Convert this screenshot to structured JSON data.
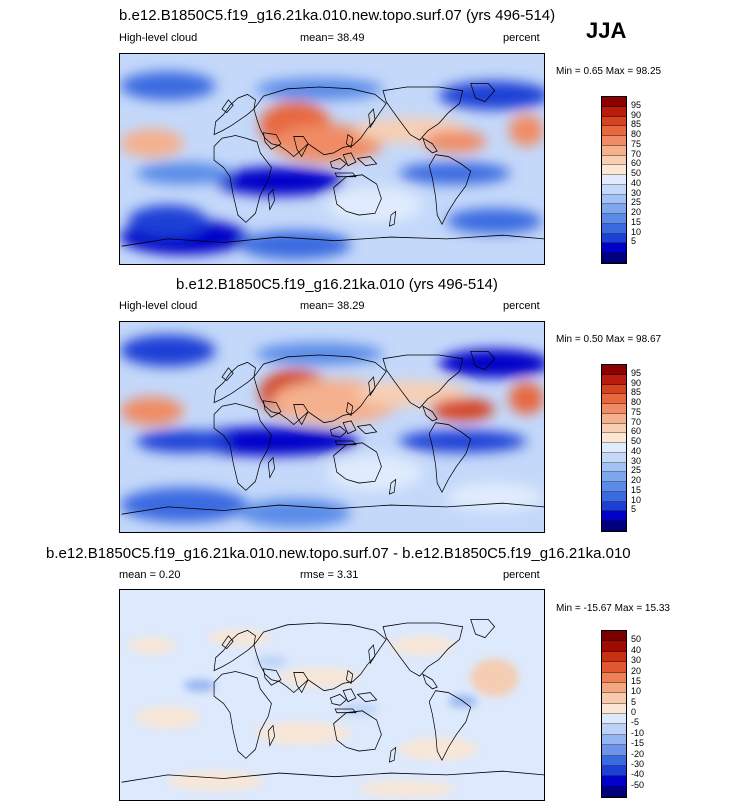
{
  "season": "JJA",
  "colors": {
    "abs": [
      "#00007f",
      "#0000c8",
      "#1c3fd6",
      "#3a6ae0",
      "#5a8be8",
      "#7fa7ef",
      "#a3c1f5",
      "#c4d8fa",
      "#e0ecfd",
      "#fbe7d4",
      "#f8cfb3",
      "#f5b08d",
      "#f08c65",
      "#e7683f",
      "#d54320",
      "#b81c0b",
      "#8b0000"
    ],
    "diff": [
      "#00007f",
      "#0000c8",
      "#1c3fd6",
      "#3a6ae0",
      "#6e93ea",
      "#94b3f1",
      "#bcd2f7",
      "#dde9fc",
      "#fbe6d3",
      "#f7caab",
      "#f3a780",
      "#ec8157",
      "#e0582f",
      "#c92f13",
      "#a00a00",
      "#7a0000"
    ]
  },
  "panels": [
    {
      "title": "b.e12.B1850C5.f19_g16.21ka.010.new.topo.surf.07 (yrs 496-514)",
      "left_label": "High-level cloud",
      "center_label": "mean=  38.49",
      "right_label": "percent",
      "minmax": "Min =   0.65 Max =  98.25",
      "colorbar_labels": [
        "95",
        "90",
        "85",
        "80",
        "75",
        "70",
        "60",
        "50",
        "40",
        "30",
        "25",
        "20",
        "15",
        "10",
        "5"
      ]
    },
    {
      "title": "b.e12.B1850C5.f19_g16.21ka.010 (yrs 496-514)",
      "left_label": "High-level cloud",
      "center_label": "mean=  38.29",
      "right_label": "percent",
      "minmax": "Min =   0.50 Max =  98.67",
      "colorbar_labels": [
        "95",
        "90",
        "85",
        "80",
        "75",
        "70",
        "60",
        "50",
        "40",
        "30",
        "25",
        "20",
        "15",
        "10",
        "5"
      ]
    },
    {
      "title": "b.e12.B1850C5.f19_g16.21ka.010.new.topo.surf.07 - b.e12.B1850C5.f19_g16.21ka.010",
      "left_label": "mean =   0.20",
      "center_label": "rmse =   3.31",
      "right_label": "percent",
      "minmax": "Min = -15.67 Max =  15.33",
      "colorbar_labels": [
        "50",
        "40",
        "30",
        "20",
        "15",
        "10",
        "5",
        "0",
        "-5",
        "-10",
        "-15",
        "-20",
        "-30",
        "-40",
        "-50"
      ]
    }
  ],
  "chart_data": [
    {
      "type": "heatmap",
      "title": "b.e12.B1850C5.f19_g16.21ka.010.new.topo.surf.07 (yrs 496-514)",
      "variable": "High-level cloud",
      "units": "percent",
      "mean": 38.49,
      "min": 0.65,
      "max": 98.25,
      "levels": [
        5,
        10,
        15,
        20,
        25,
        30,
        40,
        50,
        60,
        70,
        75,
        80,
        85,
        90,
        95
      ]
    },
    {
      "type": "heatmap",
      "title": "b.e12.B1850C5.f19_g16.21ka.010 (yrs 496-514)",
      "variable": "High-level cloud",
      "units": "percent",
      "mean": 38.29,
      "min": 0.5,
      "max": 98.67,
      "levels": [
        5,
        10,
        15,
        20,
        25,
        30,
        40,
        50,
        60,
        70,
        75,
        80,
        85,
        90,
        95
      ]
    },
    {
      "type": "heatmap",
      "title": "b.e12.B1850C5.f19_g16.21ka.010.new.topo.surf.07 - b.e12.B1850C5.f19_g16.21ka.010",
      "units": "percent",
      "mean": 0.2,
      "rmse": 3.31,
      "min": -15.67,
      "max": 15.33,
      "levels": [
        -50,
        -40,
        -30,
        -20,
        -15,
        -10,
        -5,
        0,
        5,
        10,
        15,
        20,
        30,
        40,
        50
      ]
    }
  ]
}
